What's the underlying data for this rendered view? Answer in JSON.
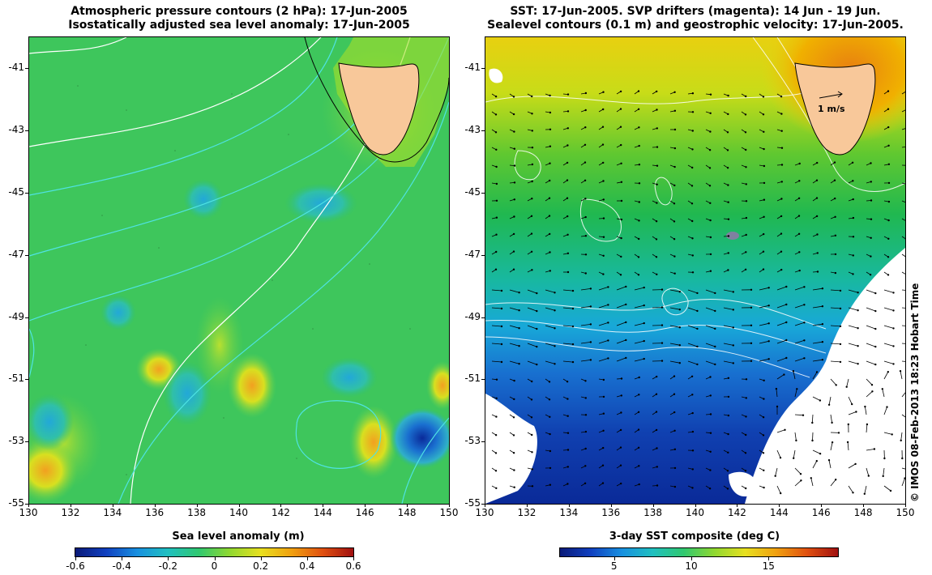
{
  "left_panel": {
    "title_line1": "Atmospheric pressure contours (2 hPa): 17-Jun-2005",
    "title_line2": "Isostatically adjusted sea level anomaly: 17-Jun-2005",
    "colorbar_title": "Sea level anomaly (m)",
    "colorbar_ticks": [
      "-0.6",
      "-0.4",
      "-0.2",
      "0",
      "0.2",
      "0.4",
      "0.6"
    ]
  },
  "right_panel": {
    "title_line1": "SST: 17-Jun-2005. SVP drifters (magenta): 14 Jun - 19 Jun.",
    "title_line2": "Sealevel contours (0.1 m) and geostrophic velocity: 17-Jun-2005.",
    "colorbar_title": "3-day SST composite (deg C)",
    "colorbar_ticks": [
      "5",
      "10",
      "15"
    ],
    "velocity_scale_label": "1 m/s"
  },
  "axes": {
    "y_ticks": [
      "-41",
      "-43",
      "-45",
      "-47",
      "-49",
      "-51",
      "-53",
      "-55"
    ],
    "x_ticks": [
      "130",
      "132",
      "134",
      "136",
      "138",
      "140",
      "142",
      "144",
      "146",
      "148",
      "150"
    ]
  },
  "credit": "© IMOS 08-Feb-2013 18:23 Hobart Time",
  "colors": {
    "land": "#f8c89a",
    "ocean_green": "#3cc45a",
    "sst_warm": "#f0b400",
    "sst_cold": "#0a2ea8",
    "contour_pressure": "#ffffff",
    "contour_cyan": "#4fe3e3"
  }
}
